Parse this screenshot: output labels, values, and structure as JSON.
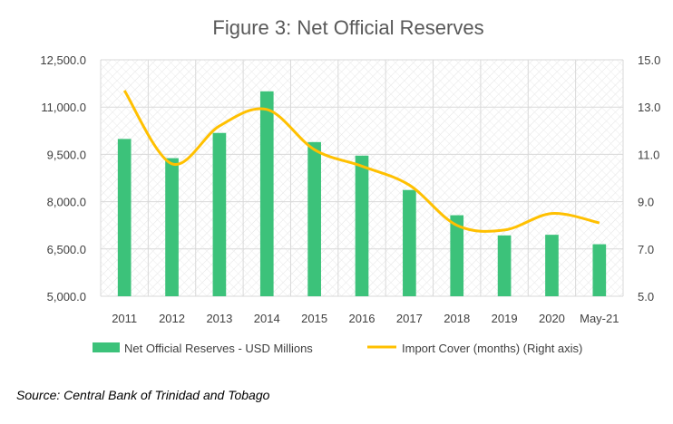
{
  "chart_data": {
    "type": "bar+line",
    "title": "Figure 3: Net Official Reserves",
    "categories": [
      "2011",
      "2012",
      "2013",
      "2014",
      "2015",
      "2016",
      "2017",
      "2018",
      "2019",
      "2020",
      "May-21"
    ],
    "series": [
      {
        "name": "Net Official Reserves - USD Millions",
        "type": "bar",
        "axis": "left",
        "color": "#3cc27a",
        "values": [
          9990,
          9380,
          10180,
          11500,
          9890,
          9460,
          8370,
          7570,
          6930,
          6950,
          6650
        ]
      },
      {
        "name": "Import Cover (months) (Right axis)",
        "type": "line",
        "axis": "right",
        "color": "#ffc000",
        "values": [
          13.7,
          10.6,
          12.2,
          12.9,
          11.2,
          10.5,
          9.7,
          8.0,
          7.8,
          8.5,
          8.1
        ]
      }
    ],
    "y_left": {
      "min": 5000,
      "max": 12500,
      "step": 1500,
      "tick_labels": [
        "5,000.0",
        "6,500.0",
        "8,000.0",
        "9,500.0",
        "11,000.0",
        "12,500.0"
      ]
    },
    "y_right": {
      "min": 5.0,
      "max": 15.0,
      "step": 2.0,
      "tick_labels": [
        "5.0",
        "7.0",
        "9.0",
        "11.0",
        "13.0",
        "15.0"
      ]
    },
    "grid": "hatched",
    "legend": "bottom"
  },
  "legend": {
    "bar_label": "Net Official Reserves - USD Millions",
    "line_label": "Import Cover (months) (Right axis)"
  },
  "source": "Source: Central Bank of Trinidad and Tobago"
}
